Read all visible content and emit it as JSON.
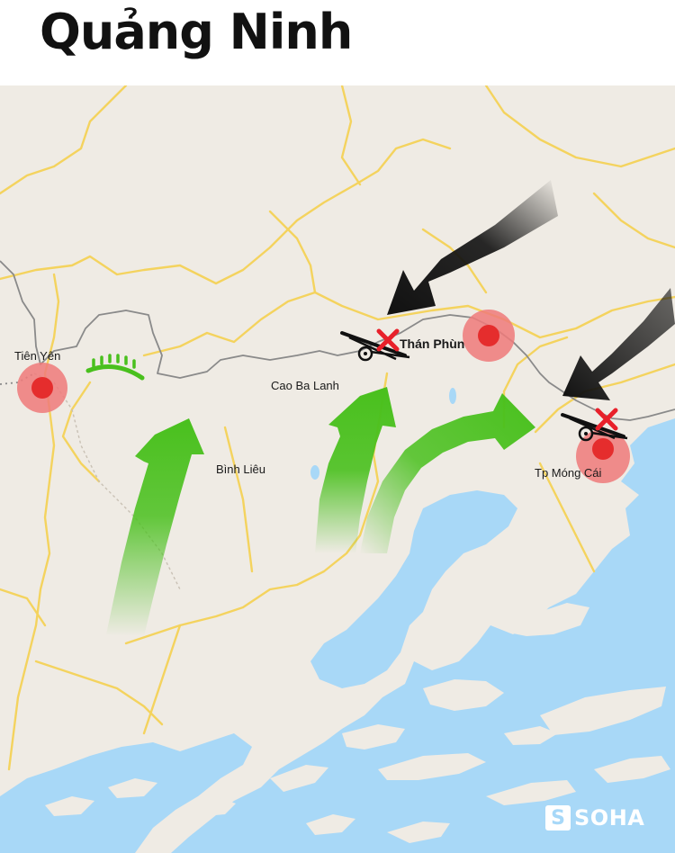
{
  "title": "Quảng Ninh",
  "places": {
    "tien_yen": "Tiên Yên",
    "binh_lieu": "Bình Liêu",
    "cao_ba_lanh": "Cao Ba Lanh",
    "than_phun": "Thán Phùn",
    "mong_cai": "Tp Móng Cái"
  },
  "watermark": {
    "mark": "S",
    "brand": "SOHA"
  },
  "colors": {
    "land": "#efebe4",
    "sea": "#a8d8f7",
    "road": "#f4d35e",
    "border": "#8a8a8a",
    "target_outer": "#ef7a7a",
    "target_inner": "#e52d2d",
    "friendly_arrow": "#49c01d",
    "enemy_arrow": "#111111",
    "destroyed_mark": "#e8202a"
  },
  "icons": [
    "artillery-icon",
    "destroyed-x-icon",
    "defense-arc-icon",
    "target-circle-icon"
  ]
}
